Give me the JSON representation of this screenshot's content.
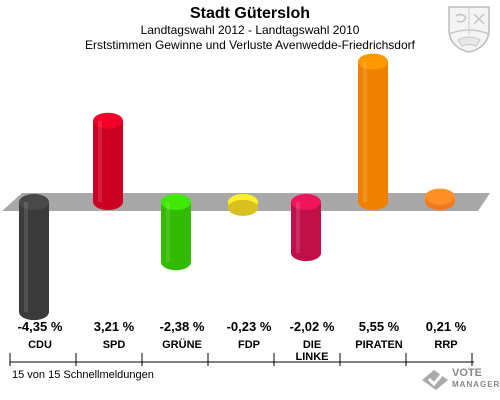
{
  "header": {
    "title": "Stadt Gütersloh",
    "subtitle": "Landtagswahl 2012 - Landtagswahl 2010",
    "subtitle2": "Erststimmen Gewinne und Verluste Avenwedde-Friedrichsdorf"
  },
  "footer": {
    "note": "15 von 15 Schnellmeldungen"
  },
  "logo": {
    "line1": "VOTE",
    "line2": "MANAGER"
  },
  "colors": {
    "CDU": "#3a3a3a",
    "SPD": "#cc0022",
    "GRUENE": "#33bb00",
    "FDP": "#d8c020",
    "LINKE": "#c0104a",
    "PIRATEN": "#f08000",
    "RRP": "#f07820",
    "baseline": "#a8a8a8"
  },
  "chart_data": {
    "type": "bar",
    "categories": [
      "CDU",
      "SPD",
      "GRÜNE",
      "FDP",
      "DIE LINKE",
      "PIRATEN",
      "RRP"
    ],
    "values": [
      -4.35,
      3.21,
      -2.38,
      -0.23,
      -2.02,
      5.55,
      0.21
    ],
    "value_labels": [
      "-4,35 %",
      "3,21 %",
      "-2,38 %",
      "-0,23 %",
      "-2,02 %",
      "5,55 %",
      "0,21 %"
    ],
    "title": "Stadt Gütersloh",
    "subtitle": "Landtagswahl 2012 - Landtagswahl 2010"
  }
}
